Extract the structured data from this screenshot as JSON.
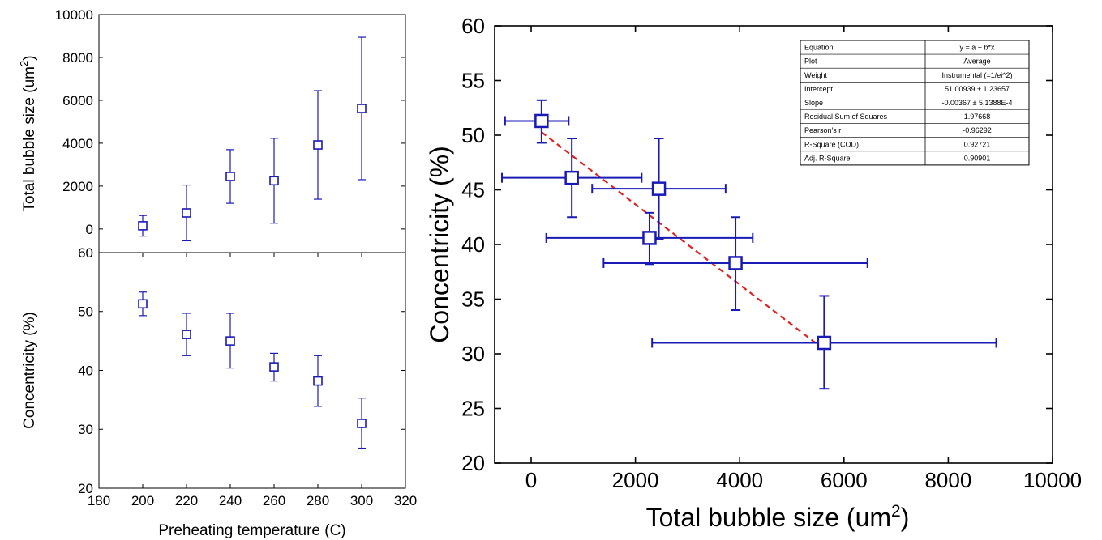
{
  "chart_data": [
    {
      "id": "top-left",
      "type": "scatter",
      "x": [
        200,
        220,
        240,
        260,
        280,
        300
      ],
      "y": [
        150,
        750,
        2450,
        2250,
        3920,
        5620
      ],
      "y_err": [
        [
          480,
          1300,
          1250,
          1980,
          2530,
          3320
        ],
        [
          480,
          1300,
          1250,
          1980,
          2530,
          3320
        ]
      ],
      "xlim": [
        180,
        320
      ],
      "ylim": [
        -1100,
        10000
      ],
      "y_ticks": [
        0,
        2000,
        4000,
        6000,
        8000,
        10000
      ],
      "ylabel": "Total bubble size (um",
      "ylabel_sup": "2",
      "ylabel_end": ")",
      "color": "#1a1ab4"
    },
    {
      "id": "bottom-left",
      "type": "scatter",
      "x": [
        200,
        220,
        240,
        260,
        280,
        300
      ],
      "y": [
        51.3,
        46.1,
        45.0,
        40.6,
        38.2,
        31.0
      ],
      "y_err": [
        [
          2.0,
          3.6,
          4.6,
          2.4,
          4.3,
          4.2
        ],
        [
          2.0,
          3.6,
          4.7,
          2.3,
          4.3,
          4.3
        ]
      ],
      "xlim": [
        180,
        320
      ],
      "ylim": [
        20,
        60
      ],
      "x_ticks": [
        180,
        200,
        220,
        240,
        260,
        280,
        300,
        320
      ],
      "y_ticks": [
        20,
        30,
        40,
        50,
        60
      ],
      "xlabel": "Preheating temperature (C)",
      "ylabel": "Concentricity (%)",
      "color": "#1a1ab4"
    },
    {
      "id": "right",
      "type": "scatter",
      "x": [
        200,
        780,
        2450,
        2270,
        3920,
        5620
      ],
      "y": [
        51.3,
        46.1,
        45.1,
        40.6,
        38.3,
        31.0
      ],
      "x_err": [
        [
          700,
          1340,
          1280,
          1980,
          2530,
          3300
        ],
        [
          520,
          1340,
          1280,
          1980,
          2530,
          3300
        ]
      ],
      "y_err": [
        [
          2.0,
          3.6,
          4.6,
          2.4,
          4.3,
          4.2
        ],
        [
          1.9,
          3.6,
          4.6,
          2.3,
          4.2,
          4.3
        ]
      ],
      "fit": {
        "intercept": 51.00939,
        "slope": -0.00367,
        "x_range": [
          200,
          5620
        ],
        "color": "#dd2222"
      },
      "xlim": [
        -700,
        10000
      ],
      "ylim": [
        20,
        60
      ],
      "x_ticks": [
        0,
        2000,
        4000,
        6000,
        8000,
        10000
      ],
      "y_ticks": [
        20,
        25,
        30,
        35,
        40,
        45,
        50,
        55,
        60
      ],
      "xlabel": "Total bubble size (um",
      "xlabel_sup": "2",
      "xlabel_end": ")",
      "ylabel": "Concentricity (%)",
      "color": "#1a1ab4",
      "fit_table": [
        [
          "Equation",
          "y = a + b*x"
        ],
        [
          "Plot",
          "Average"
        ],
        [
          "Weight",
          "Instrumental (=1/ei^2)"
        ],
        [
          "Intercept",
          "51.00939 ± 1.23657"
        ],
        [
          "Slope",
          "-0.00367 ± 5.1388E-4"
        ],
        [
          "Residual Sum of Squares",
          "1.97668"
        ],
        [
          "Pearson's r",
          "-0.96292"
        ],
        [
          "R-Square (COD)",
          "0.92721"
        ],
        [
          "Adj. R-Square",
          "0.90901"
        ]
      ]
    }
  ]
}
